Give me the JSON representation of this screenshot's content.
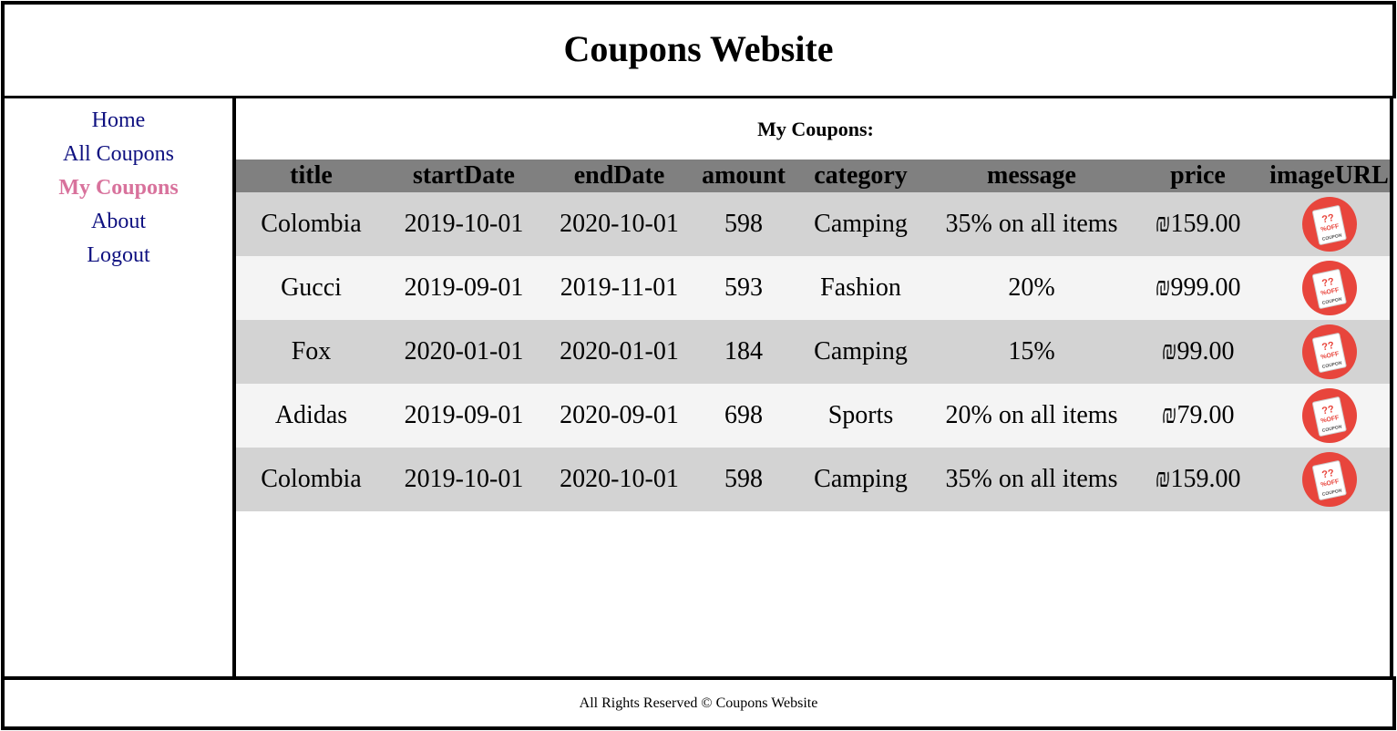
{
  "header": {
    "title": "Coupons Website"
  },
  "nav": {
    "items": [
      {
        "label": "Home",
        "active": false
      },
      {
        "label": "All Coupons",
        "active": false
      },
      {
        "label": "My Coupons",
        "active": true
      },
      {
        "label": "About",
        "active": false
      },
      {
        "label": "Logout",
        "active": false
      }
    ]
  },
  "main": {
    "heading": "My Coupons:",
    "columns": [
      "title",
      "startDate",
      "endDate",
      "amount",
      "category",
      "message",
      "price",
      "imageURL"
    ],
    "rows": [
      {
        "title": "Colombia",
        "startDate": "2019-10-01",
        "endDate": "2020-10-01",
        "amount": "598",
        "category": "Camping",
        "message": "35% on all items",
        "price": "₪159.00",
        "image": "coupon-icon"
      },
      {
        "title": "Gucci",
        "startDate": "2019-09-01",
        "endDate": "2019-11-01",
        "amount": "593",
        "category": "Fashion",
        "message": "20%",
        "price": "₪999.00",
        "image": "coupon-icon"
      },
      {
        "title": "Fox",
        "startDate": "2020-01-01",
        "endDate": "2020-01-01",
        "amount": "184",
        "category": "Camping",
        "message": "15%",
        "price": "₪99.00",
        "image": "coupon-icon"
      },
      {
        "title": "Adidas",
        "startDate": "2019-09-01",
        "endDate": "2020-09-01",
        "amount": "698",
        "category": "Sports",
        "message": "20% on all items",
        "price": "₪79.00",
        "image": "coupon-icon"
      },
      {
        "title": "Colombia",
        "startDate": "2019-10-01",
        "endDate": "2020-10-01",
        "amount": "598",
        "category": "Camping",
        "message": "35% on all items",
        "price": "₪159.00",
        "image": "coupon-icon"
      }
    ],
    "coupon_icon_text": {
      "top": "??",
      "middle": "%OFF",
      "bottom": "COUPON"
    }
  },
  "footer": {
    "text": "All Rights Reserved © Coupons Website"
  },
  "colors": {
    "nav_link": "#0e1080",
    "nav_active": "#d8729c",
    "table_header_bg": "#808080",
    "row_odd_bg": "#d3d3d3",
    "row_even_bg": "#f4f4f4",
    "coupon_red": "#e8453c"
  }
}
